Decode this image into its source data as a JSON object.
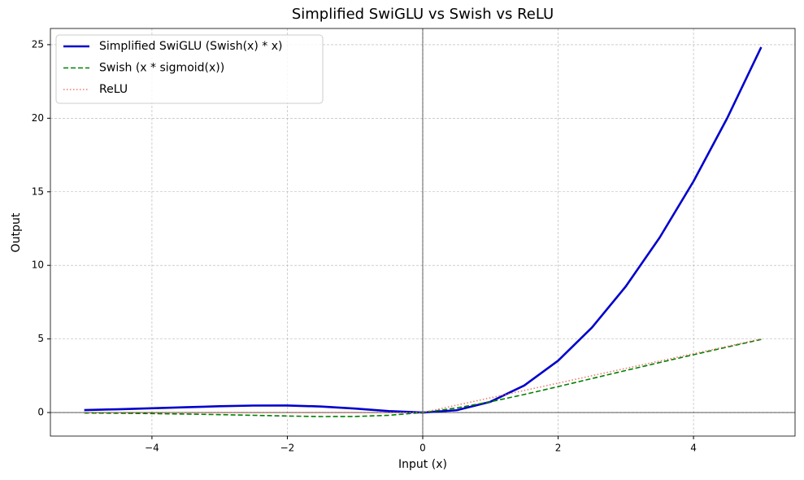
{
  "chart_data": {
    "type": "line",
    "title": "Simplified SwiGLU vs Swish vs ReLU",
    "x_label": "Input (x)",
    "y_label": "Output",
    "x": [
      -5,
      -4.5,
      -4,
      -3.5,
      -3,
      -2.5,
      -2,
      -1.5,
      -1,
      -0.5,
      0,
      0.5,
      1,
      1.5,
      2,
      2.5,
      3,
      3.5,
      4,
      4.5,
      5
    ],
    "series": [
      {
        "name": "Simplified SwiGLU (Swish(x) * x)",
        "color": "#0000cc",
        "style": "solid",
        "values": [
          0.1673,
          0.2225,
          0.2878,
          0.3591,
          0.4268,
          0.4741,
          0.4768,
          0.4105,
          0.2689,
          0.0944,
          0,
          0.1556,
          0.7311,
          1.8395,
          3.5232,
          5.7759,
          8.5732,
          11.8909,
          15.7122,
          20.0275,
          24.8327
        ]
      },
      {
        "name": "Swish (x * sigmoid(x))",
        "color": "#008000",
        "style": "dashed",
        "values": [
          -0.0335,
          -0.0494,
          -0.0719,
          -0.1026,
          -0.1423,
          -0.1896,
          -0.2384,
          -0.2736,
          -0.2689,
          -0.1888,
          0,
          0.3112,
          0.7311,
          1.2264,
          1.7616,
          2.3104,
          2.8577,
          3.3974,
          3.9281,
          4.4506,
          4.9665
        ]
      },
      {
        "name": "ReLU",
        "color": "#e8655a",
        "style": "dotted",
        "values": [
          0,
          0,
          0,
          0,
          0,
          0,
          0,
          0,
          0,
          0,
          0,
          0.5,
          1,
          1.5,
          2,
          2.5,
          3,
          3.5,
          4,
          4.5,
          5
        ]
      }
    ],
    "xlim": [
      -5.5,
      5.5
    ],
    "xticks": [
      {
        "value": -4,
        "label": "−4"
      },
      {
        "value": -2,
        "label": "−2"
      },
      0,
      2,
      4
    ],
    "ylim": [
      -1.6,
      26.1
    ],
    "yticks": [
      0,
      5,
      10,
      15,
      20,
      25
    ],
    "grid": true,
    "legend": "upper-left"
  }
}
